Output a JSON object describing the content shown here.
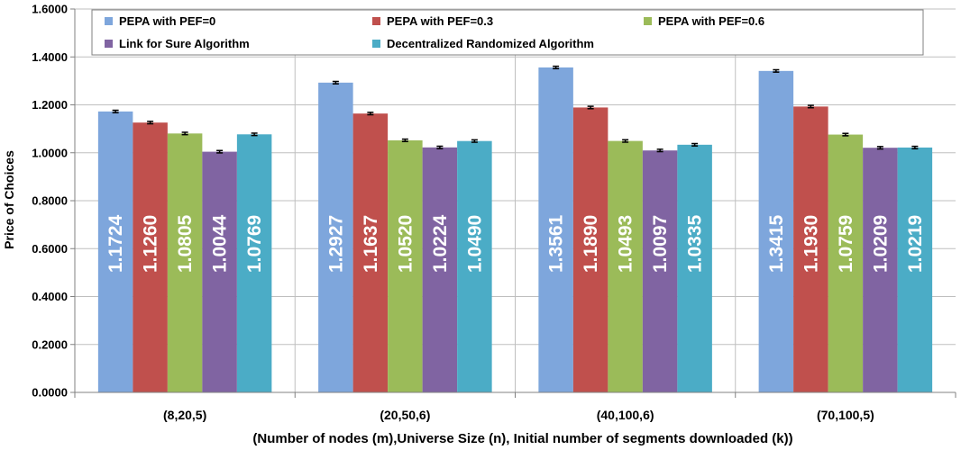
{
  "chart_data": {
    "type": "bar",
    "categories": [
      "(8,20,5)",
      "(20,50,6)",
      "(40,100,6)",
      "(70,100,5)"
    ],
    "series": [
      {
        "name": "PEPA with PEF=0",
        "color": "#7EA6DC",
        "values": [
          1.1724,
          1.2927,
          1.3561,
          1.3415
        ],
        "labels": [
          "1.1724",
          "1.2927",
          "1.3561",
          "1.3415"
        ]
      },
      {
        "name": "PEPA with PEF=0.3",
        "color": "#C0504D",
        "values": [
          1.126,
          1.1637,
          1.189,
          1.193
        ],
        "labels": [
          "1.1260",
          "1.1637",
          "1.1890",
          "1.1930"
        ]
      },
      {
        "name": "PEPA with PEF=0.6",
        "color": "#9BBB59",
        "values": [
          1.0805,
          1.052,
          1.0493,
          1.0759
        ],
        "labels": [
          "1.0805",
          "1.0520",
          "1.0493",
          "1.0759"
        ]
      },
      {
        "name": "Link for Sure Algorithm",
        "color": "#8064A2",
        "values": [
          1.0044,
          1.0224,
          1.0097,
          1.0209
        ],
        "labels": [
          "1.0044",
          "1.0224",
          "1.0097",
          "1.0209"
        ]
      },
      {
        "name": "Decentralized Randomized Algorithm",
        "color": "#4BACC6",
        "values": [
          1.0769,
          1.049,
          1.0335,
          1.0219
        ],
        "labels": [
          "1.0769",
          "1.0490",
          "1.0335",
          "1.0219"
        ]
      }
    ],
    "error_bar_halfwidth": 0.005,
    "xlabel": "(Number of nodes (m),Universe Size (n), Initial number of segments downloaded (k))",
    "ylabel": "Price of Choices",
    "ylim": [
      0.0,
      1.6
    ],
    "yticks": [
      "0.0000",
      "0.2000",
      "0.4000",
      "0.6000",
      "0.8000",
      "1.0000",
      "1.2000",
      "1.4000",
      "1.6000"
    ],
    "grid": true,
    "legend_position": "top"
  }
}
